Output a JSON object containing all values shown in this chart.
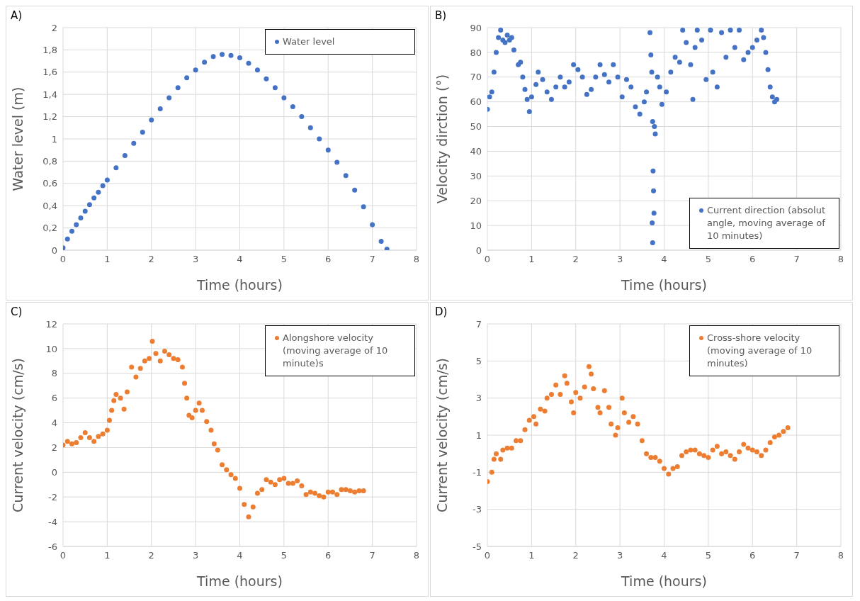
{
  "chart_data": [
    {
      "type": "scatter",
      "title": "A)",
      "xlabel": "Time (hours)",
      "ylabel": "Water level (m)",
      "legend": "top right",
      "marker": "circle",
      "grid": true,
      "xlim": [
        0,
        8
      ],
      "xticks": [
        0,
        1,
        2,
        3,
        4,
        5,
        6,
        7,
        8
      ],
      "ylim": [
        0,
        2
      ],
      "yticks": [
        0,
        {
          "value": 0.2,
          "label": "0,2"
        },
        {
          "value": 0.4,
          "label": "0,4"
        },
        {
          "value": 0.6,
          "label": "0,6"
        },
        {
          "value": 0.8,
          "label": "0,8"
        },
        1,
        {
          "value": 1.2,
          "label": "1,2"
        },
        {
          "value": 1.4,
          "label": "1,4"
        },
        {
          "value": 1.6,
          "label": "1,6"
        },
        {
          "value": 1.8,
          "label": "1,8"
        },
        2
      ],
      "x": [
        0,
        0.1,
        0.2,
        0.3,
        0.4,
        0.5,
        0.6,
        0.7,
        0.8,
        0.9,
        1.0,
        1.2,
        1.4,
        1.6,
        1.8,
        2.0,
        2.2,
        2.4,
        2.6,
        2.8,
        3.0,
        3.2,
        3.4,
        3.6,
        3.8,
        4.0,
        4.2,
        4.4,
        4.6,
        4.8,
        5.0,
        5.2,
        5.4,
        5.6,
        5.8,
        6.0,
        6.2,
        6.4,
        6.6,
        6.8,
        7.0,
        7.2,
        7.33
      ],
      "series": [
        {
          "name": "Water level",
          "color": "#4472c4",
          "values": [
            0.02,
            0.1,
            0.17,
            0.23,
            0.29,
            0.35,
            0.41,
            0.47,
            0.52,
            0.58,
            0.63,
            0.74,
            0.85,
            0.96,
            1.06,
            1.17,
            1.27,
            1.37,
            1.46,
            1.55,
            1.62,
            1.69,
            1.74,
            1.76,
            1.75,
            1.73,
            1.68,
            1.62,
            1.54,
            1.46,
            1.37,
            1.29,
            1.2,
            1.1,
            1.0,
            0.9,
            0.79,
            0.67,
            0.54,
            0.39,
            0.23,
            0.08,
            0.01
          ]
        }
      ]
    },
    {
      "type": "scatter",
      "title": "B)",
      "xlabel": "Time (hours)",
      "ylabel": "Velocity dirction (°)",
      "legend": "bottom right",
      "marker": "circle",
      "grid": true,
      "xlim": [
        0,
        8
      ],
      "xticks": [
        0,
        1,
        2,
        3,
        4,
        5,
        6,
        7,
        8
      ],
      "ylim": [
        0,
        90
      ],
      "yticks": [
        0,
        10,
        20,
        30,
        40,
        50,
        60,
        70,
        80,
        90
      ],
      "x": [
        0,
        0.05,
        0.1,
        0.15,
        0.2,
        0.25,
        0.3,
        0.35,
        0.4,
        0.45,
        0.5,
        0.55,
        0.6,
        0.7,
        0.75,
        0.8,
        0.85,
        0.9,
        0.95,
        1.0,
        1.1,
        1.15,
        1.25,
        1.35,
        1.45,
        1.55,
        1.65,
        1.75,
        1.85,
        1.95,
        2.05,
        2.15,
        2.25,
        2.35,
        2.45,
        2.55,
        2.65,
        2.75,
        2.85,
        2.95,
        3.05,
        3.15,
        3.25,
        3.35,
        3.45,
        3.55,
        3.6,
        3.68,
        3.7,
        3.72,
        3.74,
        3.75,
        3.76,
        3.77,
        3.73,
        3.74,
        3.78,
        3.8,
        3.85,
        3.9,
        3.95,
        4.05,
        4.15,
        4.25,
        4.35,
        4.42,
        4.5,
        4.6,
        4.65,
        4.7,
        4.75,
        4.85,
        4.95,
        5.05,
        5.1,
        5.2,
        5.3,
        5.4,
        5.5,
        5.6,
        5.7,
        5.8,
        5.9,
        6.0,
        6.1,
        6.2,
        6.25,
        6.3,
        6.35,
        6.4,
        6.45,
        6.5,
        6.55
      ],
      "series": [
        {
          "name": "Current direction (absolut angle, moving average of 10 minutes)",
          "color": "#4472c4",
          "values": [
            57,
            62,
            64,
            72,
            80,
            86,
            89,
            85,
            84,
            87,
            85,
            86,
            81,
            75,
            76,
            70,
            65,
            61,
            56,
            62,
            67,
            72,
            69,
            64,
            61,
            66,
            70,
            66,
            68,
            75,
            73,
            70,
            63,
            65,
            70,
            75,
            71,
            68,
            75,
            70,
            62,
            69,
            66,
            58,
            55,
            60,
            64,
            88,
            79,
            72,
            52,
            32,
            24,
            15,
            11,
            3,
            50,
            47,
            70,
            66,
            59,
            64,
            72,
            78,
            76,
            89,
            84,
            75,
            61,
            82,
            89,
            85,
            69,
            89,
            72,
            66,
            88,
            78,
            89,
            82,
            89,
            77,
            80,
            82,
            85,
            89,
            86,
            80,
            73,
            66,
            62,
            60,
            61
          ]
        }
      ]
    },
    {
      "type": "scatter",
      "title": "C)",
      "xlabel": "Time (hours)",
      "ylabel": "Current velocity (cm/s)",
      "legend": "top right",
      "marker": "circle",
      "grid": true,
      "xlim": [
        0,
        8
      ],
      "xticks": [
        0,
        1,
        2,
        3,
        4,
        5,
        6,
        7,
        8
      ],
      "ylim": [
        -6,
        12
      ],
      "yticks": [
        -6,
        -4,
        -2,
        0,
        2,
        4,
        6,
        8,
        10,
        12
      ],
      "x": [
        0,
        0.1,
        0.2,
        0.3,
        0.4,
        0.5,
        0.6,
        0.7,
        0.8,
        0.9,
        1.0,
        1.05,
        1.1,
        1.15,
        1.2,
        1.3,
        1.38,
        1.45,
        1.55,
        1.65,
        1.75,
        1.85,
        1.95,
        2.02,
        2.1,
        2.2,
        2.3,
        2.4,
        2.5,
        2.6,
        2.7,
        2.75,
        2.8,
        2.85,
        2.92,
        3.0,
        3.08,
        3.15,
        3.25,
        3.35,
        3.42,
        3.5,
        3.6,
        3.7,
        3.8,
        3.9,
        4.0,
        4.1,
        4.2,
        4.3,
        4.4,
        4.5,
        4.6,
        4.7,
        4.8,
        4.9,
        5.0,
        5.1,
        5.2,
        5.3,
        5.4,
        5.5,
        5.6,
        5.7,
        5.8,
        5.9,
        6.0,
        6.1,
        6.2,
        6.3,
        6.4,
        6.5,
        6.6,
        6.7,
        6.8
      ],
      "series": [
        {
          "name": "Alongshore velocity (moving average of 10 minute)s",
          "color": "#ed7d31",
          "values": [
            2.2,
            2.5,
            2.3,
            2.4,
            2.8,
            3.2,
            2.8,
            2.5,
            2.9,
            3.1,
            3.4,
            4.2,
            5.0,
            5.8,
            6.3,
            6.0,
            5.1,
            6.5,
            8.5,
            7.7,
            8.4,
            9.0,
            9.2,
            10.6,
            9.6,
            9.0,
            9.8,
            9.5,
            9.2,
            9.1,
            8.5,
            7.2,
            6.0,
            4.6,
            4.4,
            5.0,
            5.6,
            5.0,
            4.1,
            3.4,
            2.3,
            1.8,
            0.6,
            0.2,
            -0.2,
            -0.5,
            -1.3,
            -2.6,
            -3.6,
            -2.8,
            -1.7,
            -1.4,
            -0.6,
            -0.8,
            -1.0,
            -0.6,
            -0.5,
            -0.9,
            -0.9,
            -0.7,
            -1.1,
            -1.8,
            -1.6,
            -1.7,
            -1.9,
            -2.0,
            -1.6,
            -1.6,
            -1.8,
            -1.4,
            -1.4,
            -1.5,
            -1.6,
            -1.5,
            -1.5
          ]
        }
      ]
    },
    {
      "type": "scatter",
      "title": "D)",
      "xlabel": "Time (hours)",
      "ylabel": "Current velocity (cm/s)",
      "legend": "top right",
      "marker": "circle",
      "grid": true,
      "xlim": [
        0,
        8
      ],
      "xticks": [
        0,
        1,
        2,
        3,
        4,
        5,
        6,
        7,
        8
      ],
      "ylim": [
        -5,
        7
      ],
      "yticks": [
        -5,
        -3,
        -1,
        1,
        3,
        5,
        7
      ],
      "x": [
        0,
        0.1,
        0.15,
        0.2,
        0.3,
        0.35,
        0.45,
        0.55,
        0.65,
        0.75,
        0.85,
        0.95,
        1.05,
        1.1,
        1.2,
        1.3,
        1.35,
        1.45,
        1.55,
        1.65,
        1.75,
        1.8,
        1.9,
        1.95,
        2.0,
        2.1,
        2.2,
        2.3,
        2.35,
        2.4,
        2.5,
        2.55,
        2.65,
        2.75,
        2.8,
        2.9,
        2.95,
        3.05,
        3.1,
        3.2,
        3.3,
        3.4,
        3.5,
        3.6,
        3.7,
        3.8,
        3.9,
        4.0,
        4.1,
        4.2,
        4.3,
        4.4,
        4.5,
        4.6,
        4.7,
        4.8,
        4.9,
        5.0,
        5.1,
        5.2,
        5.3,
        5.4,
        5.5,
        5.6,
        5.7,
        5.8,
        5.9,
        6.0,
        6.1,
        6.2,
        6.3,
        6.4,
        6.5,
        6.6,
        6.7,
        6.8
      ],
      "series": [
        {
          "name": "Cross-shore velocity (moving average of 10 minutes)",
          "color": "#ed7d31",
          "values": [
            -1.5,
            -1.0,
            -0.3,
            0.0,
            -0.3,
            0.2,
            0.3,
            0.3,
            0.7,
            0.7,
            1.3,
            1.8,
            2.0,
            1.6,
            2.4,
            2.3,
            3.0,
            3.2,
            3.7,
            3.2,
            4.2,
            3.8,
            2.8,
            2.2,
            3.3,
            3.0,
            3.6,
            4.7,
            4.3,
            3.5,
            2.5,
            2.2,
            3.4,
            2.5,
            1.6,
            1.0,
            1.4,
            3.0,
            2.2,
            1.7,
            2.0,
            1.6,
            0.7,
            0.0,
            -0.2,
            -0.2,
            -0.4,
            -0.8,
            -1.1,
            -0.8,
            -0.7,
            -0.1,
            0.1,
            0.2,
            0.2,
            0.0,
            -0.1,
            -0.2,
            0.2,
            0.4,
            0.0,
            0.1,
            -0.1,
            -0.3,
            0.1,
            0.5,
            0.3,
            0.2,
            0.1,
            -0.1,
            0.2,
            0.6,
            0.9,
            1.0,
            1.2,
            1.4
          ]
        }
      ]
    }
  ]
}
